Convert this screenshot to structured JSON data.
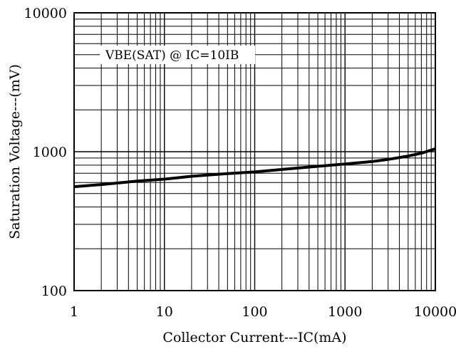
{
  "chart_data": {
    "type": "line",
    "title": "",
    "xlabel": "Collector Current---IC(mA)",
    "ylabel": "Saturation Voltage---(mV)",
    "xscale": "log",
    "yscale": "log",
    "xlim": [
      1,
      10000
    ],
    "ylim": [
      100,
      10000
    ],
    "grid": true,
    "xticks": [
      "1",
      "10",
      "100",
      "1000",
      "10000"
    ],
    "yticks": [
      "100",
      "1000",
      "10000"
    ],
    "annotation": "VBE(SAT) @ IC=10IB",
    "series": [
      {
        "name": "VBE(SAT) @ IC=10IB",
        "x": [
          1,
          2,
          3,
          5,
          10,
          20,
          30,
          50,
          100,
          200,
          500,
          1000,
          2000,
          3000,
          5000,
          7000,
          10000
        ],
        "y": [
          560,
          580,
          595,
          615,
          635,
          665,
          680,
          695,
          715,
          745,
          785,
          815,
          850,
          880,
          930,
          975,
          1050
        ]
      }
    ]
  }
}
